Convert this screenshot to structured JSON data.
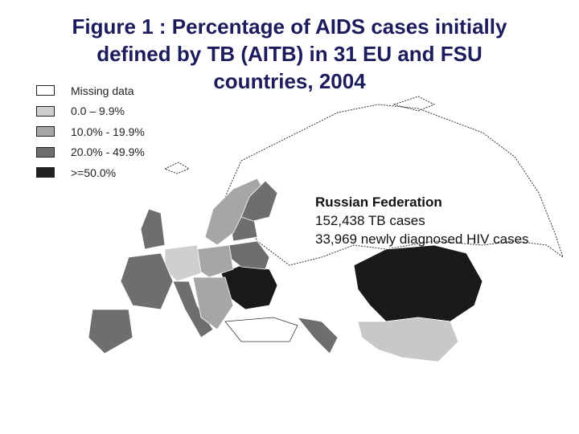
{
  "title": [
    "Figure 1 : Percentage of AIDS cases initially",
    "defined by TB (AITB) in 31 EU and FSU",
    "countries, 2004"
  ],
  "legend": [
    {
      "label": "Missing data",
      "color": "#ffffff"
    },
    {
      "label": "0.0 – 9.9%",
      "color": "#cfcfcf"
    },
    {
      "label": "10.0% - 19.9%",
      "color": "#a6a6a6"
    },
    {
      "label": "20.0% - 49.9%",
      "color": "#6e6e6e"
    },
    {
      "label": ">=50.0%",
      "color": "#222222"
    }
  ],
  "callout": {
    "country": "Russian Federation",
    "tb_cases": "152,438 TB cases",
    "hiv_cases": "33,969 newly diagnosed HIV cases"
  }
}
